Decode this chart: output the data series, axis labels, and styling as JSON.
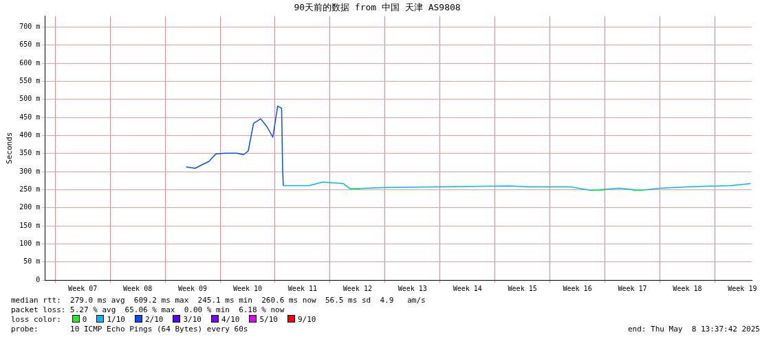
{
  "chart_data": {
    "type": "line",
    "title": "90天前的数据 from 中国 天津 AS9808",
    "ylabel": "Seconds",
    "xlim": [
      "2025-02-07T13:37",
      "2025-05-08T13:37"
    ],
    "xticks": [
      {
        "value": "2025-02-08T21:00",
        "label": null
      },
      {
        "value": "2025-02-12T09:00",
        "label": "Week 07"
      },
      {
        "value": "2025-02-15T21:00",
        "label": null
      },
      {
        "value": "2025-02-19T09:00",
        "label": "Week 08"
      },
      {
        "value": "2025-02-22T21:00",
        "label": null
      },
      {
        "value": "2025-02-26T09:00",
        "label": "Week 09"
      },
      {
        "value": "2025-03-01T21:00",
        "label": null
      },
      {
        "value": "2025-03-05T09:00",
        "label": "Week 10"
      },
      {
        "value": "2025-03-08T21:00",
        "label": null
      },
      {
        "value": "2025-03-12T09:00",
        "label": "Week 11"
      },
      {
        "value": "2025-03-15T21:00",
        "label": null
      },
      {
        "value": "2025-03-19T09:00",
        "label": "Week 12"
      },
      {
        "value": "2025-03-22T21:00",
        "label": null
      },
      {
        "value": "2025-03-26T09:00",
        "label": "Week 13"
      },
      {
        "value": "2025-03-29T21:00",
        "label": null
      },
      {
        "value": "2025-04-02T09:00",
        "label": "Week 14"
      },
      {
        "value": "2025-04-05T21:00",
        "label": null
      },
      {
        "value": "2025-04-09T09:00",
        "label": "Week 15"
      },
      {
        "value": "2025-04-12T21:00",
        "label": null
      },
      {
        "value": "2025-04-16T09:00",
        "label": "Week 16"
      },
      {
        "value": "2025-04-19T21:00",
        "label": null
      },
      {
        "value": "2025-04-23T09:00",
        "label": "Week 17"
      },
      {
        "value": "2025-04-26T21:00",
        "label": null
      },
      {
        "value": "2025-04-30T09:00",
        "label": "Week 18"
      },
      {
        "value": "2025-05-03T21:00",
        "label": null
      },
      {
        "value": "2025-05-07T09:00",
        "label": "Week 19"
      }
    ],
    "ylim": [
      0,
      730
    ],
    "yticks": [
      0,
      {
        "value": 50,
        "label": "50 m"
      },
      {
        "value": 100,
        "label": "100 m"
      },
      {
        "value": 150,
        "label": "150 m"
      },
      {
        "value": 200,
        "label": "200 m"
      },
      {
        "value": 250,
        "label": "250 m"
      },
      {
        "value": 300,
        "label": "300 m"
      },
      {
        "value": 350,
        "label": "350 m"
      },
      {
        "value": 400,
        "label": "400 m"
      },
      {
        "value": 450,
        "label": "450 m"
      },
      {
        "value": 500,
        "label": "500 m"
      },
      {
        "value": 550,
        "label": "550 m"
      },
      {
        "value": 600,
        "label": "600 m"
      },
      {
        "value": 650,
        "label": "650 m"
      },
      {
        "value": 700,
        "label": "700 m"
      }
    ],
    "grid": true,
    "legend": "bottom left",
    "marker": "none",
    "line_style": "solid",
    "series": [
      {
        "name": "0",
        "color": "#22ee22",
        "x": [
          "2025-03-18T11:00",
          "2025-03-19T17:00",
          "2025-03-19T19:00",
          "2025-04-18T04:00",
          "2025-04-19T21:00",
          "2025-04-19T23:00",
          "2025-04-23T09:00",
          "2025-04-24T19:00"
        ],
        "values": [
          252,
          252,
          null,
          249,
          249,
          null,
          248,
          248
        ]
      },
      {
        "name": "1/10",
        "color": "#00b8ff",
        "x": [
          "2025-03-09T22:00",
          "2025-03-13T05:00",
          "2025-03-14T23:00",
          "2025-03-17T13:00",
          "2025-03-18T11:00",
          "2025-03-22T21:00",
          "2025-03-29T21:00",
          "2025-04-07T17:00",
          "2025-04-10T05:00",
          "2025-04-15T11:00",
          "2025-04-18T03:00",
          "2025-04-21T17:00",
          "2025-04-24T09:00",
          "2025-04-27T00:00",
          "2025-04-30T12:00",
          "2025-05-05T22:00",
          "2025-05-08T10:00"
        ],
        "values": [
          261,
          261,
          271,
          267,
          252,
          256,
          258,
          260,
          258,
          258,
          248,
          254,
          248,
          254,
          258,
          261,
          267
        ]
      },
      {
        "name": "2/10",
        "color": "#0050ff",
        "x": [
          "2025-02-25T13:00",
          "2025-02-26T17:00",
          "2025-02-27T14:00",
          "2025-02-28T11:00",
          "2025-03-01T08:00",
          "2025-03-02T15:00",
          "2025-03-03T23:00",
          "2025-03-04T21:00",
          "2025-03-05T11:00",
          "2025-03-06T03:00",
          "2025-03-07T01:00",
          "2025-03-07T21:00",
          "2025-03-08T14:00",
          "2025-03-09T05:00",
          "2025-03-09T17:00",
          "2025-03-09T20:00",
          "2025-03-09T22:00"
        ],
        "values": [
          313,
          309,
          319,
          328,
          349,
          351,
          351,
          347,
          357,
          433,
          446,
          423,
          395,
          481,
          475,
          309,
          261
        ]
      },
      {
        "name": "3/10",
        "color": "#5e00ff"
      },
      {
        "name": "4/10",
        "color": "#7e00ff"
      },
      {
        "name": "5/10",
        "color": "#dd00ff"
      },
      {
        "name": "9/10",
        "color": "#ff0000"
      }
    ],
    "legend_title": "loss color:",
    "annotations": [
      "median rtt:  279.0 ms avg  609.2 ms max  245.1 ms min  260.6 ms now  56.5 ms sd  4.9   am/s",
      "packet loss: 5.27 % avg  65.06 % max  0.00 % min  6.18 % now",
      "probe:       10 ICMP Echo Pings (64 Bytes) every 60s",
      "end: Thu May  8 13:37:42 2025"
    ]
  }
}
